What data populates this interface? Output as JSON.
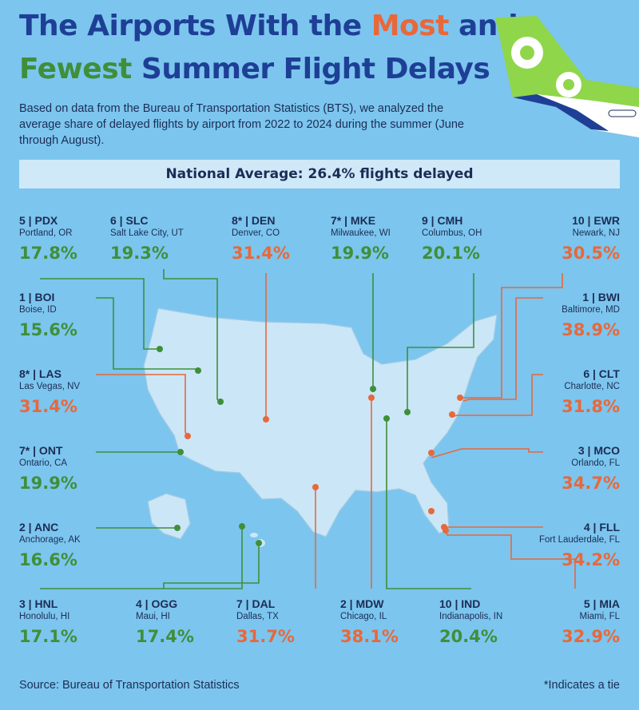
{
  "title": {
    "part1": "The Airports With the ",
    "most": "Most",
    "part2": " and",
    "fewest": "Fewest",
    "part3": " Summer Flight Delays"
  },
  "subtitle": "Based on data from the Bureau of Transportation Statistics (BTS), we analyzed the average share of delayed flights by airport from 2022 to 2024 during the summer (June through August).",
  "national_average": "National Average: 26.4% flights delayed",
  "colors": {
    "fewest": "#3f8f3a",
    "most": "#e8683a",
    "background": "#7cc5ee",
    "navy": "#1e3f96",
    "map": "#cbe6f6"
  },
  "airports": [
    {
      "id": "pdx",
      "code": "5 | PDX",
      "city": "Portland, OR",
      "value": "17.8%",
      "group": "fewest"
    },
    {
      "id": "slc",
      "code": "6 | SLC",
      "city": "Salt Lake City, UT",
      "value": "19.3%",
      "group": "fewest"
    },
    {
      "id": "den",
      "code": "8* | DEN",
      "city": "Denver, CO",
      "value": "31.4%",
      "group": "most"
    },
    {
      "id": "mke",
      "code": "7* | MKE",
      "city": "Milwaukee, WI",
      "value": "19.9%",
      "group": "fewest"
    },
    {
      "id": "cmh",
      "code": "9 | CMH",
      "city": "Columbus, OH",
      "value": "20.1%",
      "group": "fewest"
    },
    {
      "id": "ewr",
      "code": "10 | EWR",
      "city": "Newark, NJ",
      "value": "30.5%",
      "group": "most"
    },
    {
      "id": "boi",
      "code": "1 | BOI",
      "city": "Boise, ID",
      "value": "15.6%",
      "group": "fewest"
    },
    {
      "id": "bwi",
      "code": "1 | BWI",
      "city": "Baltimore, MD",
      "value": "38.9%",
      "group": "most"
    },
    {
      "id": "las",
      "code": "8* | LAS",
      "city": "Las Vegas, NV",
      "value": "31.4%",
      "group": "most"
    },
    {
      "id": "clt",
      "code": "6 | CLT",
      "city": "Charlotte, NC",
      "value": "31.8%",
      "group": "most"
    },
    {
      "id": "ont",
      "code": "7* | ONT",
      "city": "Ontario, CA",
      "value": "19.9%",
      "group": "fewest"
    },
    {
      "id": "mco",
      "code": "3 | MCO",
      "city": "Orlando, FL",
      "value": "34.7%",
      "group": "most"
    },
    {
      "id": "anc",
      "code": "2 | ANC",
      "city": "Anchorage, AK",
      "value": "16.6%",
      "group": "fewest"
    },
    {
      "id": "fll",
      "code": "4 | FLL",
      "city": "Fort Lauderdale, FL",
      "value": "34.2%",
      "group": "most"
    },
    {
      "id": "hnl",
      "code": "3 | HNL",
      "city": "Honolulu, HI",
      "value": "17.1%",
      "group": "fewest"
    },
    {
      "id": "ogg",
      "code": "4 | OGG",
      "city": "Maui, HI",
      "value": "17.4%",
      "group": "fewest"
    },
    {
      "id": "dal",
      "code": "7 | DAL",
      "city": "Dallas, TX",
      "value": "31.7%",
      "group": "most"
    },
    {
      "id": "mdw",
      "code": "2 | MDW",
      "city": "Chicago, IL",
      "value": "38.1%",
      "group": "most"
    },
    {
      "id": "ind",
      "code": "10 | IND",
      "city": "Indianapolis, IN",
      "value": "20.4%",
      "group": "fewest"
    },
    {
      "id": "mia",
      "code": "5 | MIA",
      "city": "Miami, FL",
      "value": "32.9%",
      "group": "most"
    }
  ],
  "source": "Source: Bureau of Transportation Statistics",
  "tie_note": "*Indicates a tie"
}
